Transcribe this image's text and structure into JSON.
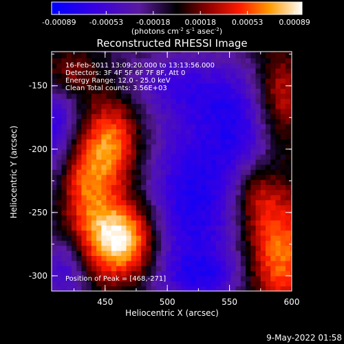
{
  "chart_data": {
    "type": "heatmap",
    "title": "Reconstructed RHESSI Image",
    "xlabel": "Heliocentric X (arcsec)",
    "ylabel": "Heliocentric Y (arcsec)",
    "xlim": [
      407,
      600
    ],
    "ylim": [
      -312,
      -123
    ],
    "x_ticks": [
      450,
      500,
      550,
      600
    ],
    "y_ticks": [
      -150,
      -200,
      -250,
      -300
    ],
    "colorbar": {
      "ticks": [
        "-0.00089",
        "-0.00053",
        "-0.00018",
        "0.00018",
        "0.00053",
        "0.00089"
      ],
      "range": [
        -0.00089,
        0.00089
      ],
      "label_pre": "(photons cm",
      "sup1": "-2",
      "label_mid": " s",
      "sup2": "-1",
      "label_post": " asec",
      "sup3": "-2",
      "label_end": ")"
    },
    "annotations": [
      "16-Feb-2011 13:09:20.000 to 13:13:56.000",
      "Detectors: 3F 4F 5F 6F 7F 8F, Att 0",
      "Energy Range: 12.0 - 25.0 keV",
      "Clean     Total counts: 3.56E+03"
    ],
    "peak_label": "Position of Peak = [468,-271]",
    "peak": [
      468,
      -271
    ],
    "sources": [
      {
        "x": 468,
        "y": -271,
        "amp": 0.00089,
        "sx": 18,
        "sy": 22
      },
      {
        "x": 440,
        "y": -268,
        "amp": 0.00055,
        "sx": 18,
        "sy": 28
      },
      {
        "x": 455,
        "y": -195,
        "amp": 0.00075,
        "sx": 17,
        "sy": 26
      },
      {
        "x": 430,
        "y": -220,
        "amp": 0.00045,
        "sx": 14,
        "sy": 22
      },
      {
        "x": 590,
        "y": -280,
        "amp": 0.00075,
        "sx": 20,
        "sy": 36
      },
      {
        "x": 570,
        "y": -235,
        "amp": 0.00035,
        "sx": 12,
        "sy": 18
      },
      {
        "x": 590,
        "y": -160,
        "amp": 0.00055,
        "sx": 14,
        "sy": 28
      },
      {
        "x": 420,
        "y": -140,
        "amp": 0.0004,
        "sx": 16,
        "sy": 14
      },
      {
        "x": 520,
        "y": -245,
        "amp": -0.0006,
        "sx": 30,
        "sy": 50
      },
      {
        "x": 410,
        "y": -185,
        "amp": -0.0005,
        "sx": 14,
        "sy": 30
      },
      {
        "x": 560,
        "y": -180,
        "amp": -0.00045,
        "sx": 24,
        "sy": 30
      },
      {
        "x": 510,
        "y": -150,
        "amp": -0.00035,
        "sx": 30,
        "sy": 18
      },
      {
        "x": 420,
        "y": -295,
        "amp": -0.0005,
        "sx": 14,
        "sy": 20
      },
      {
        "x": 530,
        "y": -300,
        "amp": -0.0003,
        "sx": 24,
        "sy": 14
      }
    ],
    "grid": false
  },
  "footer": {
    "timestamp": "9-May-2022 01:58"
  }
}
